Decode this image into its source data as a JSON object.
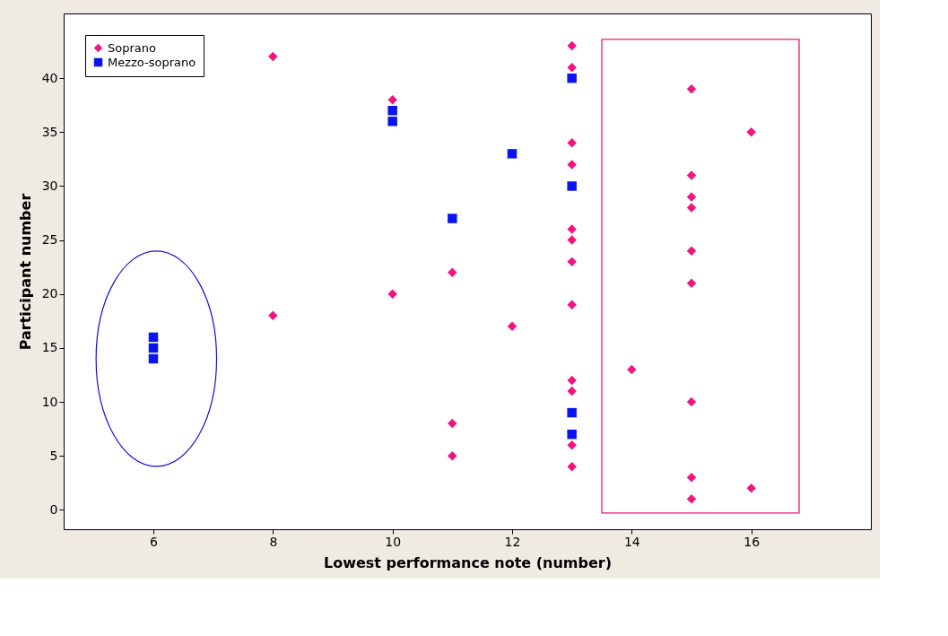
{
  "chart_data": {
    "type": "scatter",
    "xlabel": "Lowest performance note (number)",
    "ylabel": "Participant number",
    "xlim": [
      4.5,
      18
    ],
    "ylim": [
      -1.8,
      46
    ],
    "xticks": [
      6,
      8,
      10,
      12,
      14,
      16
    ],
    "yticks": [
      0,
      5,
      10,
      15,
      20,
      25,
      30,
      35,
      40
    ],
    "grid": false,
    "legend": "top left",
    "series": [
      {
        "name": "Soprano",
        "color": "#f0157f",
        "marker": "diamond",
        "x": [
          8,
          8,
          10,
          10,
          11,
          11,
          11,
          12,
          13,
          13,
          13,
          13,
          13,
          13,
          13,
          13,
          13,
          13,
          13,
          13,
          14,
          15,
          15,
          15,
          15,
          15,
          15,
          15,
          15,
          15,
          16,
          16
        ],
        "values": [
          42,
          18,
          38,
          20,
          22,
          8,
          5,
          17,
          43,
          41,
          34,
          32,
          26,
          25,
          23,
          19,
          12,
          11,
          6,
          4,
          13,
          39,
          31,
          29,
          28,
          24,
          21,
          10,
          3,
          1,
          35,
          2
        ]
      },
      {
        "name": "Mezzo-soprano",
        "color": "#0a14f0",
        "marker": "square",
        "x": [
          6,
          6,
          6,
          10,
          10,
          11,
          12,
          13,
          13,
          13,
          13
        ],
        "values": [
          16,
          15,
          14,
          37,
          36,
          27,
          33,
          40,
          30,
          9,
          7
        ]
      }
    ]
  }
}
